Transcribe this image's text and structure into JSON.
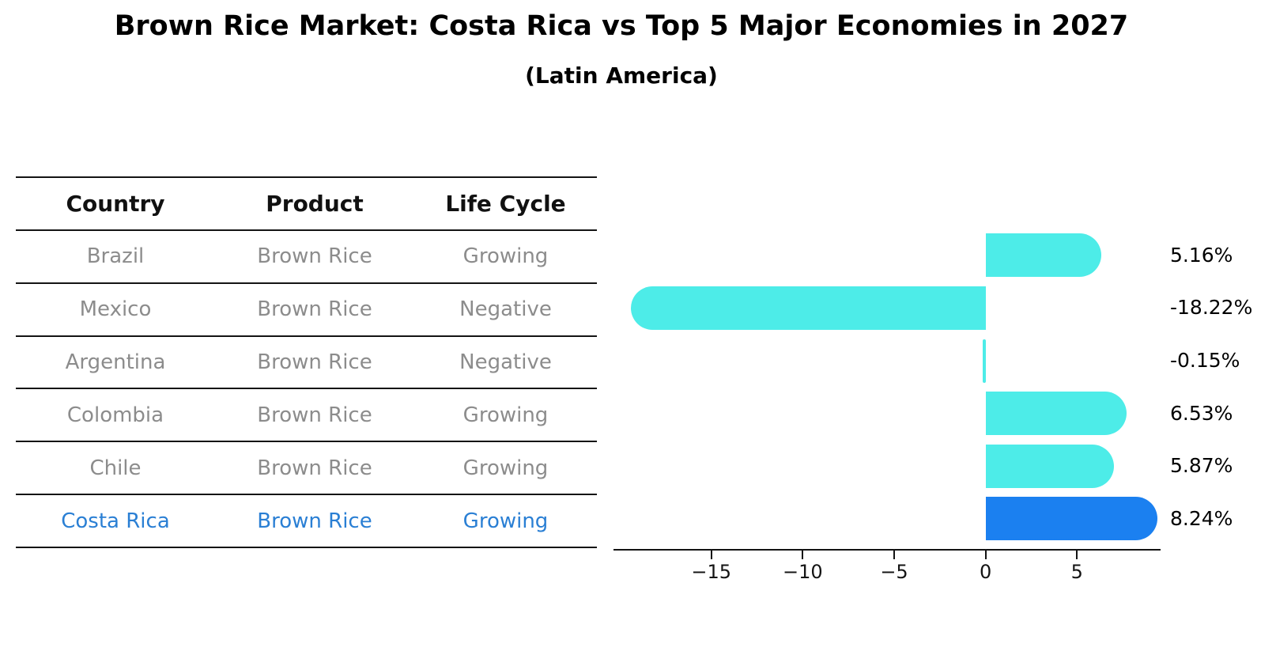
{
  "title": "Brown Rice Market: Costa Rica vs Top 5 Major Economies in 2027",
  "subtitle": "(Latin America)",
  "table": {
    "headers": [
      "Country",
      "Product",
      "Life Cycle"
    ],
    "rows": [
      {
        "country": "Brazil",
        "product": "Brown Rice",
        "life_cycle": "Growing",
        "highlight": false
      },
      {
        "country": "Mexico",
        "product": "Brown Rice",
        "life_cycle": "Negative",
        "highlight": false
      },
      {
        "country": "Argentina",
        "product": "Brown Rice",
        "life_cycle": "Negative",
        "highlight": false
      },
      {
        "country": "Colombia",
        "product": "Brown Rice",
        "life_cycle": "Growing",
        "highlight": false
      },
      {
        "country": "Chile",
        "product": "Brown Rice",
        "life_cycle": "Growing",
        "highlight": false
      },
      {
        "country": "Costa Rica",
        "product": "Brown Rice",
        "life_cycle": "Growing",
        "highlight": true
      }
    ]
  },
  "chart_data": {
    "type": "bar",
    "orientation": "horizontal",
    "title": "Brown Rice Market: Costa Rica vs Top 5 Major Economies in 2027 (Latin America)",
    "categories": [
      "Brazil",
      "Mexico",
      "Argentina",
      "Colombia",
      "Chile",
      "Costa Rica"
    ],
    "values": [
      5.16,
      -18.22,
      -0.15,
      6.53,
      5.87,
      8.24
    ],
    "value_labels": [
      "5.16%",
      "-18.22%",
      "-0.15%",
      "6.53%",
      "5.87%",
      "8.24%"
    ],
    "xlim": [
      -20.35,
      9.57
    ],
    "xticks": [
      -15,
      -10,
      -5,
      0,
      5
    ],
    "xtick_labels": [
      "−15",
      "−10",
      "−5",
      "0",
      "5"
    ],
    "grid": false,
    "legend": false,
    "highlight_index": 5
  },
  "colors": {
    "bar": "#4dece8",
    "highlight_bar": "#1b80f0",
    "highlight_text": "#2a7fd4",
    "table_text": "#8c8c8c",
    "header_text": "#111111",
    "axis": "#141414"
  }
}
